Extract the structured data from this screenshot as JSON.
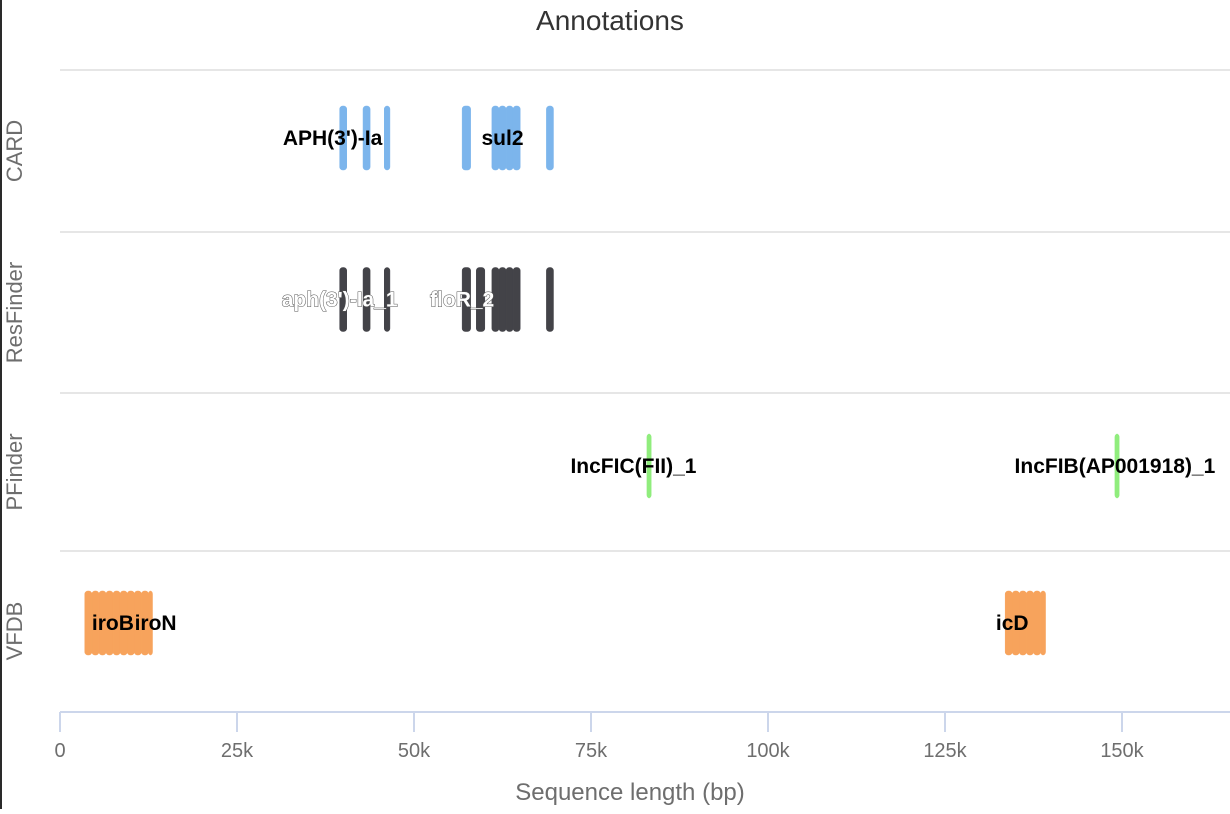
{
  "chart_data": {
    "type": "track",
    "title": "Annotations",
    "xlabel": "Sequence length (bp)",
    "xlim": [
      0,
      165000
    ],
    "x_ticks": [
      {
        "value": 0,
        "label": "0"
      },
      {
        "value": 25000,
        "label": "25k"
      },
      {
        "value": 50000,
        "label": "50k"
      },
      {
        "value": 75000,
        "label": "75k"
      },
      {
        "value": 100000,
        "label": "100k"
      },
      {
        "value": 125000,
        "label": "125k"
      },
      {
        "value": 150000,
        "label": "150k"
      }
    ],
    "grid": true,
    "colors": {
      "CARD": "#7cb5ec",
      "ResFinder": "#434348",
      "PFinder": "#90ed7d",
      "VFDB": "#f7a35c"
    },
    "tracks": [
      {
        "name": "CARD",
        "features": [
          {
            "start": 39500,
            "end": 40500
          },
          {
            "start": 42800,
            "end": 43800
          },
          {
            "start": 45800,
            "end": 46600
          },
          {
            "start": 56800,
            "end": 58000
          },
          {
            "start": 61000,
            "end": 62000
          },
          {
            "start": 62000,
            "end": 63000
          },
          {
            "start": 63000,
            "end": 64000
          },
          {
            "start": 64000,
            "end": 65000
          },
          {
            "start": 68700,
            "end": 69700
          }
        ],
        "labels": [
          {
            "text": "APH(3')-Ia",
            "x": 38500
          },
          {
            "text": "sul2",
            "x": 62500
          }
        ]
      },
      {
        "name": "ResFinder",
        "features": [
          {
            "start": 39500,
            "end": 40500
          },
          {
            "start": 42800,
            "end": 43800
          },
          {
            "start": 45800,
            "end": 46600
          },
          {
            "start": 56800,
            "end": 58000
          },
          {
            "start": 58800,
            "end": 60000
          },
          {
            "start": 61000,
            "end": 62000
          },
          {
            "start": 62000,
            "end": 63000
          },
          {
            "start": 63000,
            "end": 64000
          },
          {
            "start": 64000,
            "end": 65000
          },
          {
            "start": 68700,
            "end": 69700
          }
        ],
        "labels": [
          {
            "text": "aph(3')-Ia_1",
            "x": 39500
          },
          {
            "text": "floR_2",
            "x": 56800
          }
        ]
      },
      {
        "name": "PFinder",
        "features": [
          {
            "start": 82900,
            "end": 83500
          },
          {
            "start": 149000,
            "end": 149600
          }
        ],
        "labels": [
          {
            "text": "IncFIC(FII)_1",
            "x": 81000
          },
          {
            "text": "IncFIB(AP001918)_1",
            "x": 149000
          }
        ]
      },
      {
        "name": "VFDB",
        "features": [
          {
            "start": 3500,
            "end": 4500
          },
          {
            "start": 4500,
            "end": 5500
          },
          {
            "start": 5500,
            "end": 6500
          },
          {
            "start": 6500,
            "end": 7500
          },
          {
            "start": 7500,
            "end": 8500
          },
          {
            "start": 8500,
            "end": 9500
          },
          {
            "start": 9500,
            "end": 10500
          },
          {
            "start": 10500,
            "end": 11500
          },
          {
            "start": 11500,
            "end": 12500
          },
          {
            "start": 12500,
            "end": 13000
          },
          {
            "start": 133500,
            "end": 134500
          },
          {
            "start": 134500,
            "end": 135500
          },
          {
            "start": 135500,
            "end": 136500
          },
          {
            "start": 136500,
            "end": 137500
          },
          {
            "start": 137500,
            "end": 138500
          },
          {
            "start": 138500,
            "end": 139200
          }
        ],
        "labels": [
          {
            "text": "iroB",
            "x": 4500
          },
          {
            "text": "iroN",
            "x": 13500
          },
          {
            "text": "icD",
            "x": 134500
          }
        ]
      }
    ]
  }
}
